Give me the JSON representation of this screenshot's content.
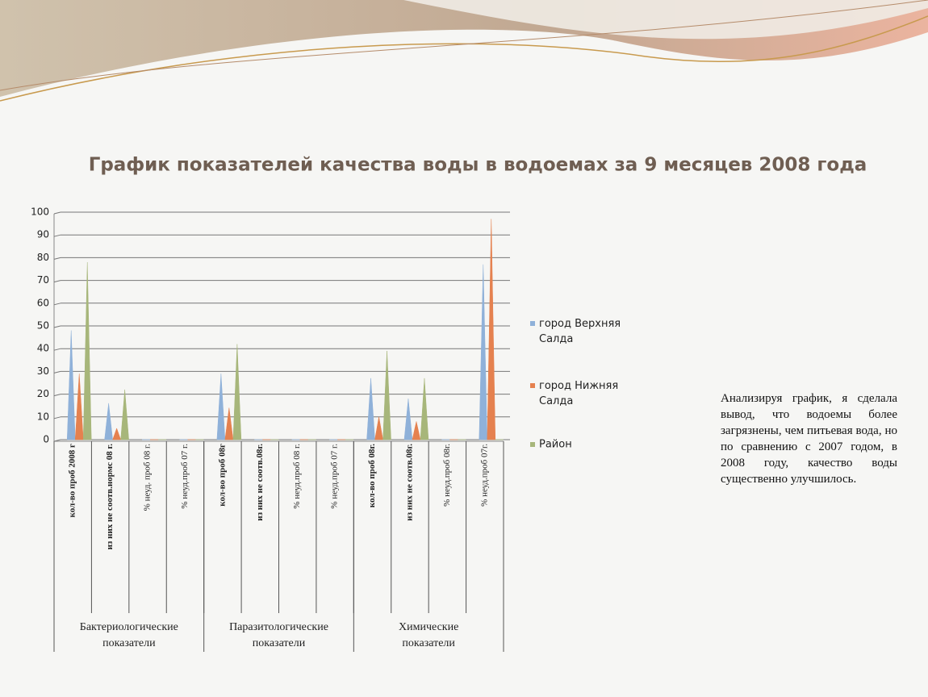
{
  "chart_data": {
    "type": "bar",
    "title": "График показателей качества воды в водоемах за 9 месяцев 2008 года",
    "groups": [
      {
        "name": "Бактериологические показатели",
        "categories": [
          "кол-во проб 2008 г",
          "из них не соотв.нормс 08 г.",
          "% неуд. проб 08 г.",
          "% неуд.проб 07 г."
        ]
      },
      {
        "name": "Паразитологические показатели",
        "categories": [
          "кол-во проб 08г",
          "из них не соотв.08г.",
          "% неуд.проб 08 г.",
          "% неуд.проб 07 г."
        ]
      },
      {
        "name": "Химические показатели",
        "categories": [
          "кол-во проб 08г.",
          "из них не соотв.08г.",
          "% неуд.проб 08г.",
          "% неуд.проб 07г."
        ]
      }
    ],
    "series": [
      {
        "name": "город Верхняя Салда",
        "color": "#8fb1d9",
        "values": [
          48,
          16,
          0,
          0,
          29,
          0,
          0,
          0,
          27,
          18,
          0,
          77
        ]
      },
      {
        "name": "город Нижняя Салда",
        "color": "#e5814f",
        "values": [
          29,
          5,
          0,
          0,
          14,
          0,
          0,
          0,
          10,
          8,
          0,
          97
        ]
      },
      {
        "name": "Район",
        "color": "#a7b67a",
        "values": [
          78,
          22,
          0,
          0,
          42,
          0,
          0,
          0,
          39,
          27,
          0,
          0
        ]
      }
    ],
    "ylim": [
      0,
      100
    ],
    "yticks": [
      0,
      10,
      20,
      30,
      40,
      50,
      60,
      70,
      80,
      90,
      100
    ],
    "grid": true,
    "note": "Анализируя график, я сделала вывод, что водоемы более загрязнены, чем питьевая вода, но по сравнению с 2007 годом, в 2008 году, качество воды существенно улучшилось."
  }
}
